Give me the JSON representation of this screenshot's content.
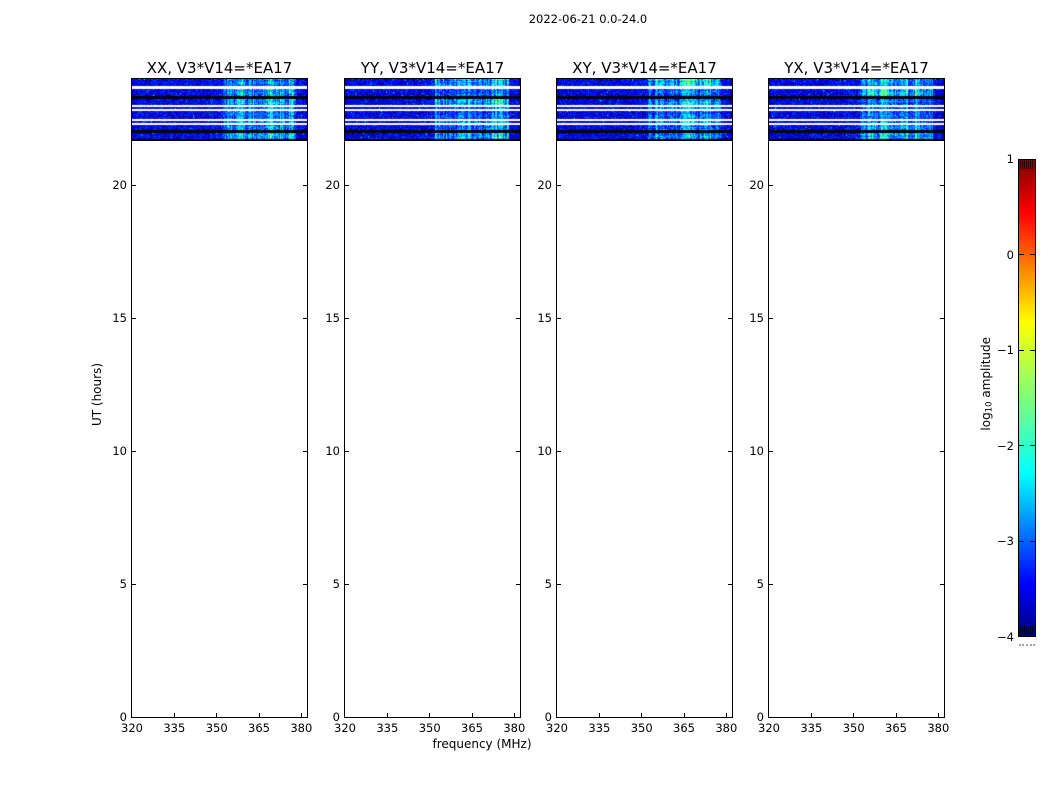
{
  "figure": {
    "suptitle": "2022-06-21 0.0-24.0",
    "background": "#ffffff",
    "frame_color": "#000000"
  },
  "chart_data": {
    "type": "heatmap",
    "title": "2022-06-21 0.0-24.0",
    "panels": [
      {
        "pol": "XX",
        "title": "XX, V3*V14=*EA17"
      },
      {
        "pol": "YY",
        "title": "YY, V3*V14=*EA17"
      },
      {
        "pol": "XY",
        "title": "XY, V3*V14=*EA17"
      },
      {
        "pol": "YX",
        "title": "YX, V3*V14=*EA17"
      }
    ],
    "x": {
      "label": "frequency (MHz)",
      "range": [
        320,
        382
      ],
      "ticks": [
        320,
        335,
        350,
        365,
        380
      ]
    },
    "y": {
      "label": "UT (hours)",
      "range": [
        0,
        24
      ],
      "ticks": [
        0,
        5,
        10,
        15,
        20
      ]
    },
    "grid": false,
    "colorbar": {
      "label_main": "log",
      "label_sub": "10",
      "label_rest": " amplitude",
      "range": [
        -4,
        1
      ],
      "ticks": [
        1,
        0,
        -1,
        -2,
        -3,
        -4
      ],
      "tick_labels": [
        "1",
        "0",
        "−1",
        "−2",
        "−3",
        "−4"
      ],
      "colormap": "jet",
      "stops": [
        [
          0,
          "#00007f"
        ],
        [
          0.11,
          "#0000ff"
        ],
        [
          0.34,
          "#00ffff"
        ],
        [
          0.5,
          "#7cff79"
        ],
        [
          0.66,
          "#ffff00"
        ],
        [
          0.89,
          "#ff0000"
        ],
        [
          1,
          "#7f0000"
        ]
      ]
    },
    "data_region": {
      "ut_range": [
        21.67,
        24.0
      ],
      "rfi_freq_range": [
        352,
        378
      ],
      "background_log_amp": [
        -4.0,
        -3.1
      ],
      "rfi_log_amp": [
        -2.6,
        -1.2
      ],
      "bands": [
        {
          "ut_hi": 24.0,
          "ut_lo": 23.74,
          "kind": "signal"
        },
        {
          "ut_hi": 23.74,
          "ut_lo": 23.62,
          "kind": "blank"
        },
        {
          "ut_hi": 23.62,
          "ut_lo": 23.36,
          "kind": "signal"
        },
        {
          "ut_hi": 23.36,
          "ut_lo": 23.25,
          "kind": "black"
        },
        {
          "ut_hi": 23.25,
          "ut_lo": 23.02,
          "kind": "signal"
        },
        {
          "ut_hi": 23.02,
          "ut_lo": 22.95,
          "kind": "blank"
        },
        {
          "ut_hi": 22.95,
          "ut_lo": 22.87,
          "kind": "signal"
        },
        {
          "ut_hi": 22.87,
          "ut_lo": 22.8,
          "kind": "blank"
        },
        {
          "ut_hi": 22.8,
          "ut_lo": 22.5,
          "kind": "signal"
        },
        {
          "ut_hi": 22.5,
          "ut_lo": 22.42,
          "kind": "blank"
        },
        {
          "ut_hi": 22.42,
          "ut_lo": 22.35,
          "kind": "signal"
        },
        {
          "ut_hi": 22.35,
          "ut_lo": 22.27,
          "kind": "blank"
        },
        {
          "ut_hi": 22.27,
          "ut_lo": 22.09,
          "kind": "signal"
        },
        {
          "ut_hi": 22.09,
          "ut_lo": 21.97,
          "kind": "black"
        },
        {
          "ut_hi": 21.97,
          "ut_lo": 21.75,
          "kind": "signal"
        },
        {
          "ut_hi": 21.75,
          "ut_lo": 21.67,
          "kind": "black"
        }
      ]
    }
  }
}
